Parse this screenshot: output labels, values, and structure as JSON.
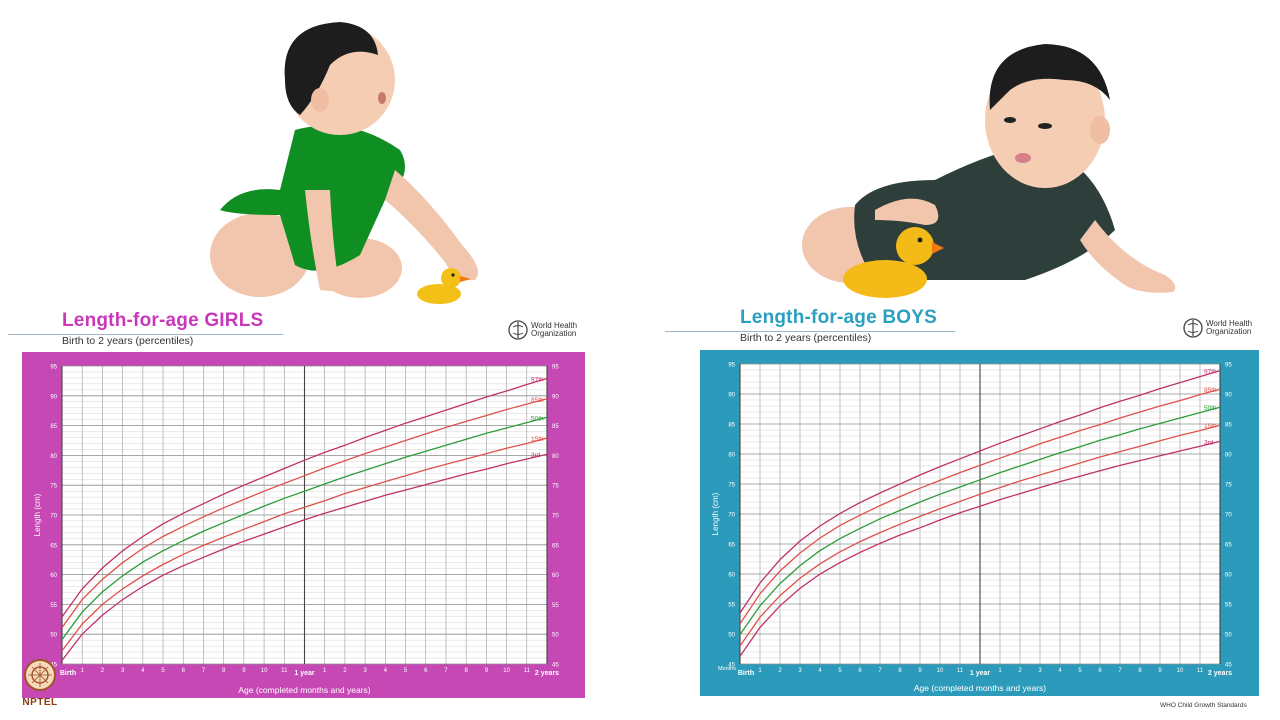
{
  "slide": {
    "watermark": "NPTEL"
  },
  "charts": [
    {
      "title": "Length-for-age GIRLS",
      "subtitle": "Birth to 2 years (percentiles)",
      "organization": "World Health Organization",
      "footer": "",
      "ylabel": "Length (cm)",
      "xlabel": "Age (completed months and years)",
      "x_tick_labels": [
        "Birth",
        "1",
        "2",
        "3",
        "4",
        "5",
        "6",
        "7",
        "8",
        "9",
        "10",
        "11",
        "1 year",
        "1",
        "2",
        "3",
        "4",
        "5",
        "6",
        "7",
        "8",
        "9",
        "10",
        "11",
        "2 years"
      ],
      "y_tick_labels": [
        "45",
        "50",
        "55",
        "60",
        "65",
        "70",
        "75",
        "80",
        "85",
        "90",
        "95"
      ],
      "percentile_labels": [
        "97th",
        "85th",
        "50th",
        "15th",
        "3rd"
      ]
    },
    {
      "title": "Length-for-age BOYS",
      "subtitle": "Birth to 2 years (percentiles)",
      "organization": "World Health Organization",
      "footer": "WHO Child Growth Standards",
      "ylabel": "Length (cm)",
      "xlabel": "Age (completed months and years)",
      "corner_label": "Months",
      "x_tick_labels": [
        "Birth",
        "1",
        "2",
        "3",
        "4",
        "5",
        "6",
        "7",
        "8",
        "9",
        "10",
        "11",
        "1 year",
        "1",
        "2",
        "3",
        "4",
        "5",
        "6",
        "7",
        "8",
        "9",
        "10",
        "11",
        "2 years"
      ],
      "y_tick_labels": [
        "45",
        "50",
        "55",
        "60",
        "65",
        "70",
        "75",
        "80",
        "85",
        "90",
        "95"
      ],
      "percentile_labels": [
        "97th",
        "85th",
        "50th",
        "15th",
        "3rd"
      ]
    }
  ],
  "chart_data": [
    {
      "type": "line",
      "title": "Length-for-age GIRLS",
      "subtitle": "Birth to 2 years (percentiles)",
      "xlabel": "Age (completed months and years)",
      "ylabel": "Length (cm)",
      "x": [
        0,
        1,
        2,
        3,
        4,
        5,
        6,
        7,
        8,
        9,
        10,
        11,
        12,
        13,
        14,
        15,
        16,
        17,
        18,
        19,
        20,
        21,
        22,
        23,
        24
      ],
      "xlim": [
        0,
        24
      ],
      "ylim": [
        45,
        95
      ],
      "grid": true,
      "series": [
        {
          "name": "97th",
          "color": "#c0306a",
          "values": [
            52.9,
            57.6,
            61.1,
            64.0,
            66.4,
            68.5,
            70.3,
            71.9,
            73.5,
            75.0,
            76.4,
            77.8,
            79.2,
            80.5,
            81.7,
            83.0,
            84.2,
            85.4,
            86.5,
            87.6,
            88.7,
            89.8,
            90.8,
            91.9,
            92.9
          ]
        },
        {
          "name": "85th",
          "color": "#e0504a",
          "values": [
            51.1,
            55.8,
            59.2,
            62.0,
            64.4,
            66.4,
            68.1,
            69.7,
            71.2,
            72.6,
            74.0,
            75.3,
            76.6,
            77.9,
            79.1,
            80.3,
            81.4,
            82.5,
            83.6,
            84.7,
            85.7,
            86.7,
            87.7,
            88.6,
            89.5
          ]
        },
        {
          "name": "50th",
          "color": "#2e9b3a",
          "values": [
            49.1,
            53.7,
            57.1,
            59.8,
            62.1,
            64.0,
            65.7,
            67.3,
            68.7,
            70.1,
            71.5,
            72.8,
            74.0,
            75.2,
            76.4,
            77.5,
            78.6,
            79.7,
            80.7,
            81.7,
            82.7,
            83.7,
            84.6,
            85.5,
            86.4
          ]
        },
        {
          "name": "15th",
          "color": "#e0504a",
          "values": [
            47.2,
            51.7,
            55.0,
            57.6,
            59.8,
            61.7,
            63.4,
            64.9,
            66.3,
            67.6,
            68.9,
            70.2,
            71.3,
            72.4,
            73.6,
            74.6,
            75.6,
            76.6,
            77.6,
            78.5,
            79.4,
            80.3,
            81.2,
            82.0,
            82.9
          ]
        },
        {
          "name": "3rd",
          "color": "#c0306a",
          "values": [
            45.6,
            50.0,
            53.2,
            55.8,
            58.0,
            59.9,
            61.5,
            62.9,
            64.3,
            65.6,
            66.8,
            68.0,
            69.2,
            70.3,
            71.3,
            72.3,
            73.3,
            74.2,
            75.1,
            76.0,
            76.9,
            77.7,
            78.6,
            79.4,
            80.2
          ]
        }
      ]
    },
    {
      "type": "line",
      "title": "Length-for-age BOYS",
      "subtitle": "Birth to 2 years (percentiles)",
      "xlabel": "Age (completed months and years)",
      "ylabel": "Length (cm)",
      "x": [
        0,
        1,
        2,
        3,
        4,
        5,
        6,
        7,
        8,
        9,
        10,
        11,
        12,
        13,
        14,
        15,
        16,
        17,
        18,
        19,
        20,
        21,
        22,
        23,
        24
      ],
      "xlim": [
        0,
        24
      ],
      "ylim": [
        45,
        95
      ],
      "grid": true,
      "series": [
        {
          "name": "97th",
          "color": "#c0306a",
          "values": [
            53.5,
            58.5,
            62.4,
            65.5,
            68.0,
            70.1,
            71.9,
            73.5,
            75.0,
            76.5,
            77.9,
            79.2,
            80.5,
            81.8,
            83.0,
            84.2,
            85.4,
            86.5,
            87.7,
            88.8,
            89.8,
            90.9,
            91.9,
            92.9,
            93.9
          ]
        },
        {
          "name": "85th",
          "color": "#e0504a",
          "values": [
            51.7,
            56.7,
            60.5,
            63.5,
            66.0,
            68.1,
            69.8,
            71.4,
            72.9,
            74.3,
            75.6,
            76.9,
            78.1,
            79.3,
            80.5,
            81.7,
            82.8,
            83.9,
            84.9,
            86.0,
            87.0,
            88.0,
            88.9,
            89.9,
            90.8
          ]
        },
        {
          "name": "50th",
          "color": "#2e9b3a",
          "values": [
            49.9,
            54.7,
            58.4,
            61.4,
            63.9,
            65.9,
            67.6,
            69.2,
            70.6,
            72.0,
            73.3,
            74.5,
            75.7,
            76.9,
            78.0,
            79.1,
            80.2,
            81.2,
            82.3,
            83.2,
            84.2,
            85.1,
            86.0,
            86.9,
            87.8
          ]
        },
        {
          "name": "15th",
          "color": "#e0504a",
          "values": [
            48.0,
            52.8,
            56.4,
            59.3,
            61.7,
            63.7,
            65.4,
            66.9,
            68.3,
            69.6,
            70.9,
            72.1,
            73.3,
            74.4,
            75.5,
            76.5,
            77.5,
            78.5,
            79.5,
            80.4,
            81.3,
            82.2,
            83.1,
            83.9,
            84.8
          ]
        },
        {
          "name": "3rd",
          "color": "#c0306a",
          "values": [
            46.3,
            51.1,
            54.7,
            57.6,
            60.0,
            61.9,
            63.6,
            65.1,
            66.5,
            67.7,
            69.0,
            70.2,
            71.3,
            72.4,
            73.4,
            74.4,
            75.4,
            76.3,
            77.2,
            78.1,
            78.9,
            79.7,
            80.5,
            81.3,
            82.1
          ]
        }
      ]
    }
  ]
}
